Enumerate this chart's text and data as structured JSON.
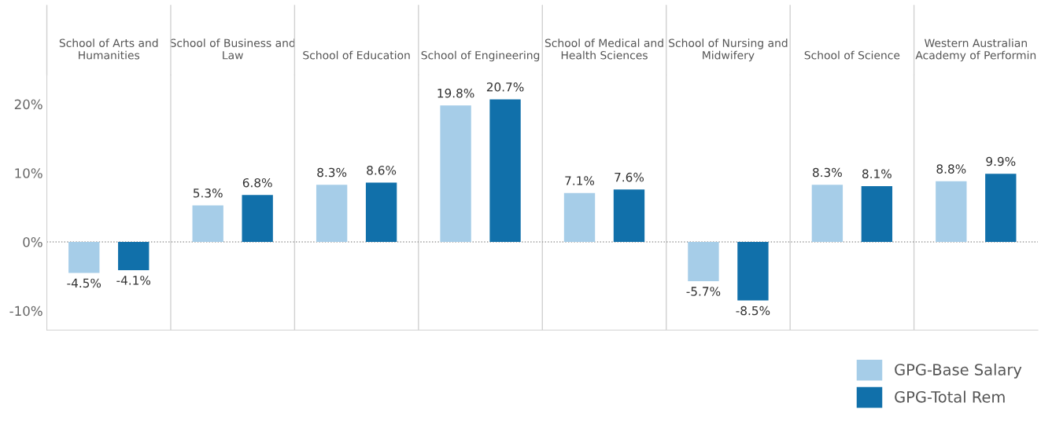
{
  "chart_data": {
    "type": "bar",
    "categories": [
      "School of Arts and Humanities",
      "School of Business and Law",
      "School of Education",
      "School of Engineering",
      "School of Medical and Health Sciences",
      "School of Nursing and Midwifery",
      "School of Science",
      "Western Australian Academy of Performin"
    ],
    "series": [
      {
        "name": "GPG-Base Salary",
        "color": "#a6cde8",
        "values": [
          -4.5,
          5.3,
          8.3,
          19.8,
          7.1,
          -5.7,
          8.3,
          8.8
        ],
        "value_labels": [
          "-4.5%",
          "5.3%",
          "8.3%",
          "19.8%",
          "7.1%",
          "-5.7%",
          "8.3%",
          "8.8%"
        ]
      },
      {
        "name": "GPG-Total Rem",
        "color": "#1170aa",
        "values": [
          -4.1,
          6.8,
          8.6,
          20.7,
          7.6,
          -8.5,
          8.1,
          9.9
        ],
        "value_labels": [
          "-4.1%",
          "6.8%",
          "8.6%",
          "20.7%",
          "7.6%",
          "-8.5%",
          "8.1%",
          "9.9%"
        ]
      }
    ],
    "ylim": [
      -12.8,
      24.3
    ],
    "yticks": [
      {
        "value": -10,
        "label": "-10%"
      },
      {
        "value": 0,
        "label": "0%"
      },
      {
        "value": 10,
        "label": "10%"
      },
      {
        "value": 20,
        "label": "20%"
      }
    ],
    "ref_lines": [
      {
        "axis": "y",
        "value": 0,
        "color": "#9a9a9a",
        "line_style": "dotted"
      }
    ],
    "grid": "x",
    "legend": "bottom right"
  }
}
